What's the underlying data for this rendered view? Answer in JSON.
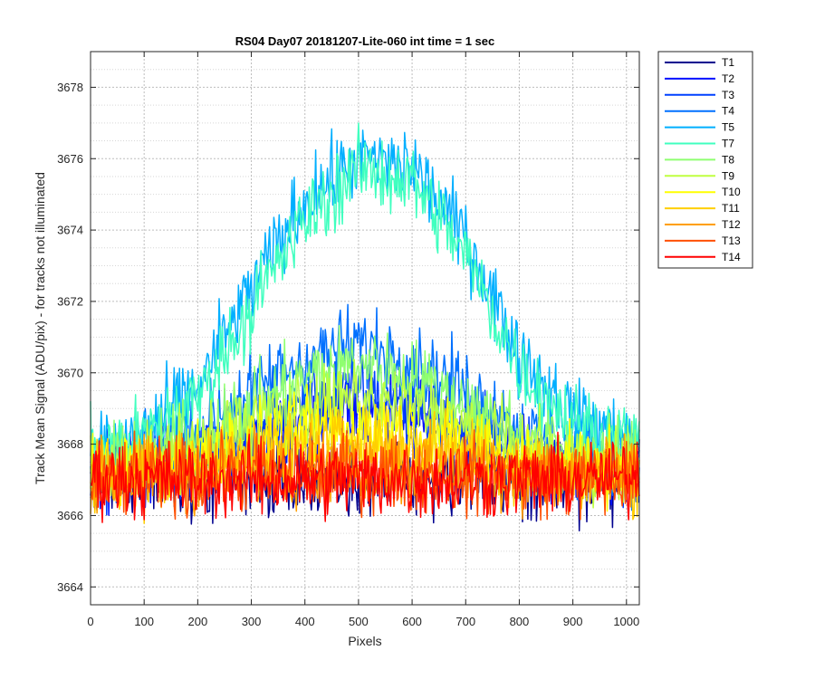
{
  "chart_data": {
    "type": "line",
    "title": "RS04 Day07 20181207-Lite-060 int time = 1 sec",
    "xlabel": "Pixels",
    "ylabel": "Track Mean Signal (ADU/pix) - for tracks not illuminated",
    "xlim": [
      0,
      1024
    ],
    "ylim": [
      3663.5,
      3679
    ],
    "xticks": [
      "0",
      "100",
      "200",
      "300",
      "400",
      "500",
      "600",
      "700",
      "800",
      "900",
      "1000"
    ],
    "yticks": [
      "3664",
      "3666",
      "3668",
      "3670",
      "3672",
      "3674",
      "3676",
      "3678"
    ],
    "grid": "on (dotted, major and minor)",
    "legend_position": "outside-top-right",
    "series_profile": {
      "x_points": [
        0,
        100,
        200,
        300,
        400,
        500,
        600,
        700,
        800,
        900,
        1024
      ],
      "description": "mean signal by pixel; noisy traces (±~1.5 ADU)"
    },
    "series": [
      {
        "name": "T1",
        "color": "#00008F",
        "values": [
          3667.0,
          3667.0,
          3667.0,
          3667.0,
          3667.0,
          3667.0,
          3667.0,
          3667.0,
          3667.0,
          3667.0,
          3667.0
        ]
      },
      {
        "name": "T2",
        "color": "#0010FF",
        "values": [
          3667.2,
          3667.3,
          3667.6,
          3668.2,
          3668.7,
          3669.0,
          3668.8,
          3668.2,
          3667.6,
          3667.3,
          3667.2
        ]
      },
      {
        "name": "T3",
        "color": "#0040FF",
        "values": [
          3667.3,
          3667.4,
          3667.8,
          3668.5,
          3669.2,
          3669.5,
          3669.2,
          3668.5,
          3667.8,
          3667.4,
          3667.3
        ]
      },
      {
        "name": "T4",
        "color": "#0070FF",
        "values": [
          3667.4,
          3667.7,
          3668.4,
          3669.5,
          3670.4,
          3670.8,
          3670.4,
          3669.5,
          3668.4,
          3667.7,
          3667.4
        ]
      },
      {
        "name": "T5",
        "color": "#00AFFF",
        "values": [
          3667.8,
          3668.3,
          3669.6,
          3672.4,
          3674.8,
          3676.0,
          3675.8,
          3673.8,
          3670.5,
          3668.8,
          3668.0
        ]
      },
      {
        "name": "T7",
        "color": "#40FFBF",
        "values": [
          3667.8,
          3668.2,
          3669.3,
          3671.8,
          3674.3,
          3675.7,
          3675.4,
          3673.3,
          3670.1,
          3668.6,
          3667.9
        ]
      },
      {
        "name": "T8",
        "color": "#8FFF70",
        "values": [
          3667.4,
          3667.6,
          3668.2,
          3669.0,
          3669.8,
          3670.3,
          3669.9,
          3669.1,
          3668.3,
          3667.8,
          3667.5
        ]
      },
      {
        "name": "T9",
        "color": "#BFFF40",
        "values": [
          3667.3,
          3667.5,
          3667.9,
          3668.5,
          3669.0,
          3669.2,
          3669.0,
          3668.5,
          3667.9,
          3667.5,
          3667.3
        ]
      },
      {
        "name": "T10",
        "color": "#FFFF00",
        "values": [
          3667.2,
          3667.3,
          3667.6,
          3668.0,
          3668.4,
          3668.5,
          3668.3,
          3668.0,
          3667.6,
          3667.3,
          3667.2
        ]
      },
      {
        "name": "T11",
        "color": "#FFCF00",
        "values": [
          3667.1,
          3667.2,
          3667.4,
          3667.7,
          3667.9,
          3668.0,
          3667.9,
          3667.7,
          3667.4,
          3667.2,
          3667.1
        ]
      },
      {
        "name": "T12",
        "color": "#FF9F00",
        "values": [
          3667.0,
          3667.1,
          3667.2,
          3667.3,
          3667.4,
          3667.4,
          3667.4,
          3667.3,
          3667.2,
          3667.1,
          3667.0
        ]
      },
      {
        "name": "T13",
        "color": "#FF4F00",
        "values": [
          3667.0,
          3667.0,
          3667.1,
          3667.1,
          3667.2,
          3667.2,
          3667.2,
          3667.1,
          3667.1,
          3667.0,
          3667.0
        ]
      },
      {
        "name": "T14",
        "color": "#FF0000",
        "values": [
          3667.1,
          3667.0,
          3667.0,
          3667.0,
          3667.0,
          3667.0,
          3667.0,
          3667.0,
          3667.0,
          3667.0,
          3667.1
        ]
      }
    ]
  }
}
